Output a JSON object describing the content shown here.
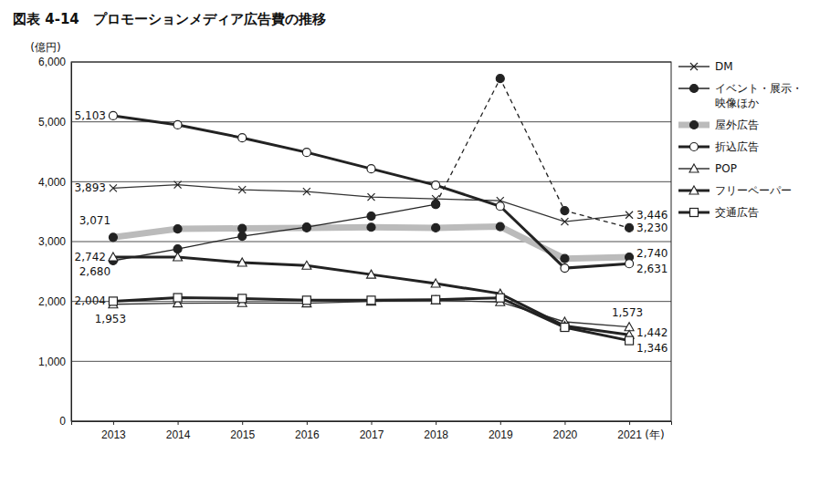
{
  "chart_data": {
    "type": "line",
    "title": "図表 4-14　プロモーションメディア広告費の推移",
    "y_label": "(億円)",
    "x_label": "(年)",
    "categories": [
      "2013",
      "2014",
      "2015",
      "2016",
      "2017",
      "2018",
      "2019",
      "2020",
      "2021"
    ],
    "ylim": [
      0,
      6000
    ],
    "yticks": [
      0,
      {
        "value": 1000,
        "label": "1,000"
      },
      {
        "value": 2000,
        "label": "2,000"
      },
      {
        "value": 3000,
        "label": "3,000"
      },
      {
        "value": 4000,
        "label": "4,000"
      },
      {
        "value": 5000,
        "label": "5,000"
      },
      {
        "value": 6000,
        "label": "6,000"
      }
    ],
    "grid": true,
    "legend": "right",
    "data_labels": true,
    "series": [
      {
        "name": "DM",
        "color": "#333333",
        "marker": "x",
        "line_style": "thin",
        "values": [
          3893,
          3950,
          3865,
          3835,
          3745,
          3714,
          3683,
          3333,
          3446
        ],
        "value_labels": [
          "3,893",
          null,
          null,
          null,
          null,
          null,
          null,
          null,
          "3,446"
        ]
      },
      {
        "name": "イベント・展示・映像ほか",
        "color": "#222222",
        "marker": "filled_circle",
        "line_style": "thin",
        "values": [
          2680,
          2877,
          3090,
          3242,
          3425,
          3623,
          null,
          null,
          null
        ],
        "value_labels": [
          "2,680",
          null,
          null,
          null,
          null,
          null,
          null,
          null,
          null
        ]
      },
      {
        "color": "#222222",
        "marker": "filled_circle",
        "line_style": "dashed",
        "values": [
          null,
          null,
          null,
          null,
          null,
          3623,
          5723,
          3516,
          3230
        ],
        "value_labels": [
          null,
          null,
          null,
          null,
          null,
          null,
          null,
          null,
          "3,230"
        ]
      },
      {
        "name": "屋外広告",
        "color": "#bbbbbb",
        "marker": "filled_circle",
        "line_style": "heavy",
        "values": [
          3071,
          3212,
          3220,
          3230,
          3240,
          3230,
          3250,
          2715,
          2740
        ],
        "value_labels": [
          "3,071",
          null,
          null,
          null,
          null,
          null,
          null,
          null,
          "2,740"
        ]
      },
      {
        "name": "折込広告",
        "color": "#222222",
        "marker": "open_circle",
        "line_style": "thick",
        "values": [
          5103,
          4950,
          4733,
          4490,
          4216,
          3942,
          3590,
          2557,
          2631
        ],
        "value_labels": [
          "5,103",
          null,
          null,
          null,
          null,
          null,
          null,
          null,
          "2,631"
        ]
      },
      {
        "name": "POP",
        "color": "#333333",
        "marker": "open_triangle",
        "line_style": "thin",
        "values": [
          1953,
          1970,
          1975,
          1970,
          2000,
          2020,
          1990,
          1660,
          1573
        ],
        "value_labels": [
          "1,953",
          null,
          null,
          null,
          null,
          null,
          null,
          null,
          "1,573"
        ]
      },
      {
        "name": "フリーペーパー",
        "color": "#222222",
        "marker": "open_triangle",
        "line_style": "thick",
        "values": [
          2742,
          2742,
          2650,
          2600,
          2450,
          2300,
          2130,
          1590,
          1442
        ],
        "value_labels": [
          "2,742",
          null,
          null,
          null,
          null,
          null,
          null,
          null,
          "1,442"
        ]
      },
      {
        "name": "交通広告",
        "color": "#222222",
        "marker": "open_square",
        "line_style": "thick",
        "values": [
          2004,
          2063,
          2050,
          2020,
          2020,
          2030,
          2060,
          1568,
          1346
        ],
        "value_labels": [
          "2,004",
          null,
          null,
          null,
          null,
          null,
          null,
          null,
          "1,346"
        ]
      }
    ]
  }
}
